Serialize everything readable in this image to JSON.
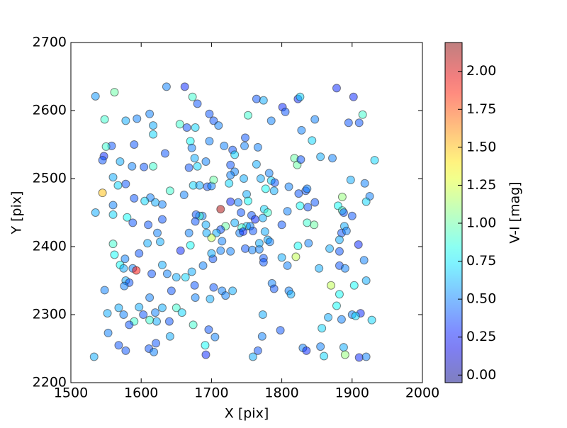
{
  "chart_data": {
    "type": "scatter",
    "xlabel": "X [pix]",
    "ylabel": "Y [pix]",
    "xlim": [
      1500,
      2000
    ],
    "xticks": [
      1500,
      1600,
      1700,
      1800,
      1900,
      2000
    ],
    "ylim": [
      2200,
      2700
    ],
    "yticks": [
      2200,
      2300,
      2400,
      2500,
      2600,
      2700
    ],
    "colormap": "jet",
    "colorbar": {
      "label": "V-I [mag]",
      "lim": [
        -0.05,
        2.19
      ],
      "ticks": [
        {
          "value": 0,
          "label": "0.00"
        },
        {
          "value": 0.25,
          "label": "0.25"
        },
        {
          "value": 0.5,
          "label": "0.50"
        },
        {
          "value": 0.75,
          "label": "0.75"
        },
        {
          "value": 1,
          "label": "1.00"
        },
        {
          "value": 1.25,
          "label": "1.25"
        },
        {
          "value": 1.5,
          "label": "1.50"
        },
        {
          "value": 1.75,
          "label": "1.75"
        },
        {
          "value": 2,
          "label": "2.00"
        }
      ]
    },
    "x": [
      1535,
      1562,
      1548,
      1636,
      1662,
      1673,
      1680,
      1612,
      1594,
      1578,
      1617,
      1655,
      1665,
      1677,
      1697,
      1703,
      1710,
      1752,
      1764,
      1774,
      1801,
      1805,
      1785,
      1823,
      1826,
      1847,
      1878,
      1902,
      1895,
      1910,
      1915,
      1617,
      1670,
      1697,
      1590,
      1558,
      1550,
      1547,
      1545,
      1570,
      1587,
      1604,
      1617,
      1634,
      1672,
      1676,
      1668,
      1680,
      1692,
      1718,
      1730,
      1733,
      1748,
      1747,
      1766,
      1764,
      1727,
      1733,
      1727,
      1746,
      1782,
      1785,
      1790,
      1789,
      1777,
      1770,
      1828,
      1843,
      1818,
      1822,
      1827,
      1855,
      1872,
      1932,
      1898,
      1918,
      1925,
      1920,
      1886,
      1834,
      1836,
      1824,
      1810,
      1847,
      1880,
      1886,
      1888,
      1900,
      1889,
      1885,
      1892,
      1882,
      1868,
      1882,
      1909,
      1917,
      1882,
      1890,
      1853,
      1823,
      1820,
      1808,
      1810,
      1813,
      1838,
      1846,
      1836,
      1826,
      1837,
      1808,
      1800,
      1775,
      1780,
      1773,
      1776,
      1780,
      1783,
      1800,
      1774,
      1774,
      1786,
      1789,
      1798,
      1773,
      1772,
      1766,
      1759,
      1730,
      1715,
      1720,
      1703,
      1705,
      1696,
      1691,
      1692,
      1698,
      1677,
      1676,
      1672,
      1688,
      1702,
      1700,
      1713,
      1715,
      1727,
      1720,
      1713,
      1713,
      1707,
      1700,
      1693,
      1692,
      1687,
      1683,
      1678,
      1677,
      1668,
      1670,
      1656,
      1661,
      1674,
      1683,
      1694,
      1700,
      1703,
      1725,
      1727,
      1738,
      1750,
      1752,
      1742,
      1750,
      1757,
      1762,
      1755,
      1759,
      1733,
      1743,
      1740,
      1745,
      1748,
      1758,
      1768,
      1768,
      1641,
      1630,
      1620,
      1613,
      1605,
      1590,
      1578,
      1560,
      1567,
      1545,
      1560,
      1560,
      1535,
      1580,
      1588,
      1610,
      1630,
      1623,
      1627,
      1609,
      1597,
      1560,
      1562,
      1577,
      1570,
      1575,
      1588,
      1593,
      1578,
      1583,
      1576,
      1615,
      1630,
      1637,
      1663,
      1650,
      1643,
      1612,
      1597,
      1603,
      1620,
      1630,
      1650,
      1658,
      1640,
      1622,
      1612,
      1590,
      1583,
      1575,
      1568,
      1548,
      1552,
      1553,
      1568,
      1578,
      1611,
      1618,
      1621,
      1641,
      1674,
      1533,
      1857,
      1866,
      1878,
      1882,
      1903,
      1920,
      1900,
      1912,
      1905,
      1885,
      1928,
      1888,
      1890,
      1910,
      1920,
      1855,
      1860,
      1830,
      1835,
      1870
    ],
    "y": [
      2621,
      2627,
      2587,
      2635,
      2635,
      2620,
      2610,
      2595,
      2588,
      2585,
      2578,
      2580,
      2575,
      2575,
      2595,
      2585,
      2578,
      2593,
      2617,
      2615,
      2605,
      2598,
      2585,
      2617,
      2620,
      2587,
      2633,
      2620,
      2582,
      2582,
      2594,
      2565,
      2555,
      2555,
      2550,
      2548,
      2547,
      2533,
      2527,
      2525,
      2518,
      2517,
      2518,
      2537,
      2545,
      2530,
      2516,
      2518,
      2525,
      2548,
      2542,
      2535,
      2560,
      2548,
      2546,
      2521,
      2520,
      2510,
      2505,
      2500,
      2508,
      2497,
      2494,
      2482,
      2485,
      2500,
      2571,
      2556,
      2530,
      2520,
      2528,
      2532,
      2530,
      2527,
      2498,
      2493,
      2474,
      2466,
      2473,
      2482,
      2485,
      2478,
      2488,
      2465,
      2460,
      2453,
      2450,
      2445,
      2430,
      2420,
      2423,
      2410,
      2397,
      2393,
      2403,
      2380,
      2372,
      2368,
      2368,
      2401,
      2385,
      2372,
      2335,
      2330,
      2405,
      2432,
      2435,
      2460,
      2458,
      2452,
      2432,
      2455,
      2450,
      2442,
      2422,
      2410,
      2407,
      2384,
      2383,
      2377,
      2346,
      2338,
      2277,
      2300,
      2268,
      2247,
      2238,
      2335,
      2335,
      2328,
      2340,
      2267,
      2278,
      2255,
      2241,
      2323,
      2325,
      2343,
      2363,
      2372,
      2382,
      2390,
      2394,
      2408,
      2393,
      2430,
      2425,
      2455,
      2420,
      2413,
      2420,
      2432,
      2445,
      2445,
      2447,
      2437,
      2420,
      2402,
      2394,
      2476,
      2490,
      2490,
      2488,
      2489,
      2498,
      2493,
      2466,
      2465,
      2477,
      2467,
      2450,
      2430,
      2446,
      2440,
      2430,
      2423,
      2435,
      2428,
      2420,
      2422,
      2397,
      2395,
      2396,
      2405,
      2482,
      2462,
      2465,
      2472,
      2467,
      2471,
      2492,
      2502,
      2490,
      2479,
      2461,
      2447,
      2450,
      2443,
      2435,
      2432,
      2440,
      2420,
      2407,
      2405,
      2390,
      2404,
      2388,
      2382,
      2373,
      2368,
      2368,
      2365,
      2350,
      2347,
      2342,
      2360,
      2373,
      2360,
      2355,
      2355,
      2335,
      2325,
      2311,
      2300,
      2303,
      2310,
      2310,
      2303,
      2290,
      2290,
      2292,
      2290,
      2285,
      2300,
      2310,
      2336,
      2302,
      2273,
      2255,
      2247,
      2250,
      2245,
      2258,
      2268,
      2285,
      2238,
      2280,
      2296,
      2313,
      2330,
      2343,
      2350,
      2300,
      2302,
      2298,
      2293,
      2292,
      2252,
      2241,
      2237,
      2238,
      2253,
      2239,
      2251,
      2247,
      2343
    ],
    "c": [
      0.55,
      1.0,
      0.9,
      0.5,
      0.3,
      0.9,
      0.4,
      0.5,
      0.5,
      0.6,
      0.6,
      0.9,
      0.4,
      0.7,
      0.4,
      0.4,
      0.5,
      0.9,
      0.4,
      0.6,
      0.3,
      0.4,
      0.5,
      0.3,
      0.7,
      0.5,
      0.3,
      0.3,
      0.4,
      0.4,
      0.9,
      0.7,
      0.8,
      0.5,
      0.4,
      0.4,
      0.9,
      0.3,
      0.4,
      0.6,
      0.5,
      0.4,
      0.9,
      0.4,
      0.5,
      0.6,
      0.4,
      0.7,
      0.5,
      0.5,
      0.4,
      0.7,
      0.4,
      0.5,
      0.5,
      0.6,
      0.4,
      0.5,
      0.5,
      0.6,
      0.5,
      0.7,
      0.4,
      0.6,
      0.8,
      0.6,
      0.5,
      0.7,
      1.0,
      1.0,
      0.4,
      0.6,
      0.5,
      0.7,
      0.6,
      0.5,
      0.5,
      0.7,
      1.1,
      0.4,
      0.5,
      0.4,
      0.5,
      0.4,
      0.8,
      0.9,
      0.4,
      0.4,
      0.6,
      0.4,
      0.5,
      0.6,
      0.6,
      0.4,
      0.3,
      0.5,
      0.4,
      0.5,
      0.6,
      0.8,
      1.2,
      0.5,
      0.5,
      0.6,
      0.5,
      1.0,
      0.9,
      0.8,
      0.4,
      0.5,
      0.4,
      0.7,
      0.9,
      0.6,
      0.6,
      0.6,
      0.5,
      0.6,
      0.4,
      0.4,
      0.5,
      0.4,
      0.4,
      0.6,
      0.5,
      0.4,
      0.6,
      0.6,
      0.5,
      0.5,
      0.4,
      0.5,
      0.4,
      0.8,
      0.3,
      0.6,
      0.5,
      0.4,
      0.6,
      0.5,
      0.4,
      0.6,
      0.5,
      0.5,
      0.5,
      1.0,
      0.4,
      2.1,
      0.6,
      1.2,
      0.6,
      0.6,
      0.5,
      0.9,
      0.4,
      0.4,
      0.5,
      0.8,
      0.3,
      0.5,
      0.7,
      0.6,
      0.4,
      0.5,
      1.0,
      0.7,
      0.3,
      0.5,
      0.6,
      0.8,
      0.4,
      0.7,
      0.4,
      0.3,
      0.5,
      0.4,
      0.6,
      0.9,
      0.5,
      0.3,
      0.4,
      0.5,
      0.5,
      0.6,
      0.9,
      0.5,
      0.6,
      0.5,
      0.7,
      0.4,
      0.4,
      0.6,
      0.7,
      1.5,
      0.5,
      0.7,
      0.6,
      0.8,
      0.4,
      0.4,
      0.4,
      0.5,
      0.6,
      0.6,
      0.4,
      0.9,
      0.8,
      0.5,
      0.8,
      0.6,
      0.5,
      1.9,
      0.6,
      0.4,
      0.5,
      0.4,
      0.6,
      0.5,
      0.7,
      0.6,
      0.4,
      0.5,
      0.6,
      0.4,
      0.5,
      0.6,
      0.9,
      0.7,
      0.4,
      0.6,
      0.9,
      0.9,
      0.4,
      0.5,
      0.6,
      0.5,
      0.6,
      0.5,
      0.4,
      0.4,
      0.4,
      0.5,
      0.4,
      0.6,
      0.9,
      0.6,
      0.7,
      0.6,
      0.8,
      0.8,
      0.8,
      0.6,
      0.5,
      0.3,
      0.7,
      0.5,
      0.7,
      0.6,
      1.1,
      0.3,
      0.5,
      0.5,
      0.7,
      0.5,
      0.3,
      1.2
    ]
  }
}
